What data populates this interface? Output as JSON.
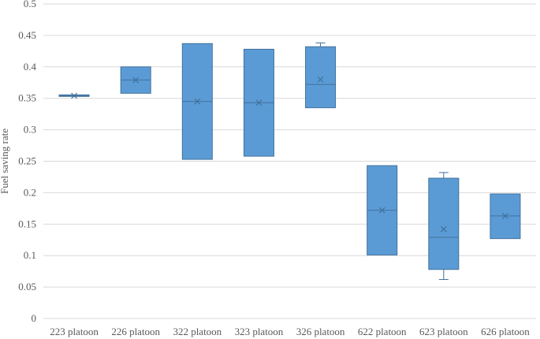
{
  "chart_data": {
    "type": "box",
    "ylabel": "Fuel saving rate",
    "ylim": [
      0,
      0.5
    ],
    "yticks": [
      "0",
      "0.05",
      "0.1",
      "0.15",
      "0.2",
      "0.25",
      "0.3",
      "0.35",
      "0.4",
      "0.45",
      "0.5"
    ],
    "ytick_values": [
      0,
      0.05,
      0.1,
      0.15,
      0.2,
      0.25,
      0.3,
      0.35,
      0.4,
      0.45,
      0.5
    ],
    "grid": true,
    "colors": {
      "box_fill": "#5b9bd5",
      "box_edge": "#41719c",
      "grid": "#d9d9d9"
    },
    "categories": [
      "223 platoon",
      "226 platoon",
      "322 platoon",
      "323 platoon",
      "326 platoon",
      "622 platoon",
      "623 platoon",
      "626 platoon"
    ],
    "boxes": [
      {
        "min": 0.353,
        "q1": 0.353,
        "median": 0.354,
        "q3": 0.355,
        "max": 0.355,
        "mean": 0.354
      },
      {
        "min": 0.358,
        "q1": 0.358,
        "median": 0.379,
        "q3": 0.4,
        "max": 0.4,
        "mean": 0.379
      },
      {
        "min": 0.253,
        "q1": 0.253,
        "median": 0.345,
        "q3": 0.437,
        "max": 0.437,
        "mean": 0.345
      },
      {
        "min": 0.258,
        "q1": 0.258,
        "median": 0.343,
        "q3": 0.428,
        "max": 0.428,
        "mean": 0.343
      },
      {
        "min": 0.335,
        "q1": 0.335,
        "median": 0.372,
        "q3": 0.432,
        "max": 0.438,
        "mean": 0.38
      },
      {
        "min": 0.101,
        "q1": 0.101,
        "median": 0.172,
        "q3": 0.243,
        "max": 0.243,
        "mean": 0.172
      },
      {
        "min": 0.062,
        "q1": 0.078,
        "median": 0.129,
        "q3": 0.223,
        "max": 0.232,
        "mean": 0.142
      },
      {
        "min": 0.127,
        "q1": 0.127,
        "median": 0.163,
        "q3": 0.198,
        "max": 0.198,
        "mean": 0.163
      }
    ]
  }
}
